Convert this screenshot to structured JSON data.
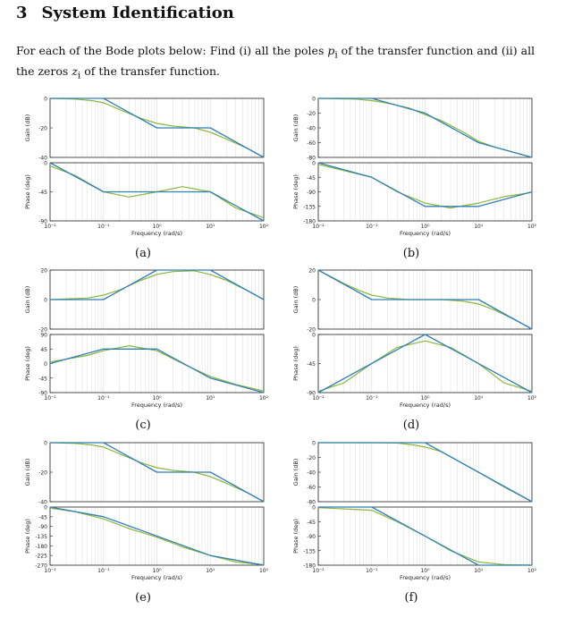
{
  "section": {
    "number": "3",
    "title": "System Identification",
    "intro_text_1": "For each of the Bode plots below: Find (i) all the poles ",
    "pole_symbol": "p",
    "pole_sub": "i",
    "intro_text_2": " of the transfer function and (ii) all the zeros ",
    "zero_symbol": "z",
    "zero_sub": "i",
    "intro_text_3": " of the transfer function."
  },
  "colors": {
    "asymptote": "#2f7fb8",
    "actual": "#8ab83a",
    "grid": "#dcdcdc",
    "axis": "#222222"
  },
  "chart_data": [
    {
      "type": "line",
      "id": "a",
      "caption": "(a)",
      "xlabel": "Frequency (rad/s)",
      "xlim": [
        0.01,
        100
      ],
      "x_ticks": [
        "10⁻²",
        "10⁻¹",
        "10⁰",
        "10¹",
        "10²"
      ],
      "gain": {
        "ylabel": "Gain (dB)",
        "ylim": [
          -40,
          0
        ],
        "ticks": [
          0,
          -20,
          -40
        ],
        "asymptote": {
          "x": [
            0.01,
            0.1,
            1,
            10,
            100
          ],
          "y": [
            0,
            0,
            -20,
            -20,
            -40
          ]
        },
        "actual": {
          "x": [
            0.01,
            0.03,
            0.06,
            0.1,
            0.2,
            0.5,
            1,
            2,
            5,
            10,
            20,
            50,
            100
          ],
          "y": [
            0,
            -0.5,
            -1.5,
            -3,
            -7.5,
            -13.5,
            -17,
            -18.8,
            -20,
            -23,
            -27.5,
            -34,
            -40
          ]
        }
      },
      "phase": {
        "ylabel": "Phase (deg)",
        "ylim": [
          -90,
          0
        ],
        "ticks": [
          0,
          -45,
          -90
        ],
        "asymptote": {
          "x": [
            0.01,
            0.1,
            10,
            100
          ],
          "y": [
            0,
            -45,
            -45,
            -90
          ]
        },
        "actual": {
          "x": [
            0.01,
            0.03,
            0.1,
            0.3,
            1,
            3,
            10,
            30,
            100
          ],
          "y": [
            -5,
            -20,
            -45,
            -53,
            -45,
            -37,
            -45,
            -70,
            -85
          ]
        }
      }
    },
    {
      "type": "line",
      "id": "b",
      "caption": "(b)",
      "xlabel": "Frequency (rad/s)",
      "xlim": [
        0.01,
        100
      ],
      "x_ticks": [
        "10⁻²",
        "10⁻¹",
        "10⁰",
        "10¹",
        "10²"
      ],
      "gain": {
        "ylabel": "Gain (dB)",
        "ylim": [
          -80,
          0
        ],
        "ticks": [
          0,
          -20,
          -40,
          -60,
          -80
        ],
        "asymptote": {
          "x": [
            0.01,
            0.1,
            1,
            10,
            100
          ],
          "y": [
            0,
            0,
            -20,
            -60,
            -80
          ]
        },
        "actual": {
          "x": [
            0.01,
            0.05,
            0.1,
            0.2,
            0.5,
            1,
            2,
            5,
            10,
            20,
            50,
            100
          ],
          "y": [
            0,
            -1,
            -3,
            -6.5,
            -13,
            -22,
            -30,
            -45,
            -58,
            -66,
            -74,
            -80
          ]
        }
      },
      "phase": {
        "ylabel": "Phase (deg)",
        "ylim": [
          -180,
          0
        ],
        "ticks": [
          0,
          -45,
          -90,
          -135,
          -180
        ],
        "asymptote": {
          "x": [
            0.01,
            0.1,
            1,
            10,
            100
          ],
          "y": [
            0,
            -45,
            -135,
            -135,
            -90
          ]
        },
        "actual": {
          "x": [
            0.01,
            0.1,
            0.3,
            1,
            3,
            10,
            30,
            100
          ],
          "y": [
            -5,
            -45,
            -90,
            -125,
            -140,
            -125,
            -105,
            -92
          ]
        }
      }
    },
    {
      "type": "line",
      "id": "c",
      "caption": "(c)",
      "xlabel": "Frequency (rad/s)",
      "xlim": [
        0.01,
        100
      ],
      "x_ticks": [
        "10⁻²",
        "10⁻¹",
        "10⁰",
        "10¹",
        "10²"
      ],
      "gain": {
        "ylabel": "Gain (dB)",
        "ylim": [
          -20,
          20
        ],
        "ticks": [
          20,
          0,
          -20
        ],
        "asymptote": {
          "x": [
            0.01,
            0.1,
            1,
            10,
            100
          ],
          "y": [
            0,
            0,
            20,
            20,
            0
          ]
        },
        "actual": {
          "x": [
            0.01,
            0.05,
            0.1,
            0.2,
            0.5,
            1,
            2,
            5,
            10,
            20,
            50,
            100
          ],
          "y": [
            0,
            1,
            3,
            6.5,
            13,
            17,
            19,
            19.5,
            17,
            13,
            6,
            0
          ]
        }
      },
      "phase": {
        "ylabel": "Phase (deg)",
        "ylim": [
          -90,
          90
        ],
        "ticks": [
          90,
          45,
          0,
          -45,
          -90
        ],
        "asymptote": {
          "x": [
            0.01,
            0.1,
            1,
            10,
            100
          ],
          "y": [
            0,
            45,
            45,
            -45,
            -90
          ]
        },
        "actual": {
          "x": [
            0.01,
            0.05,
            0.1,
            0.3,
            1,
            3,
            10,
            30,
            100
          ],
          "y": [
            5,
            25,
            40,
            55,
            40,
            0,
            -40,
            -65,
            -85
          ]
        }
      }
    },
    {
      "type": "line",
      "id": "d",
      "caption": "(d)",
      "xlabel": "Frequency (rad/s)",
      "xlim": [
        0.01,
        100
      ],
      "x_ticks": [
        "10⁻²",
        "10⁻¹",
        "10⁰",
        "10¹",
        "10²"
      ],
      "gain": {
        "ylabel": "Gain (dB)",
        "ylim": [
          -20,
          20
        ],
        "ticks": [
          20,
          0,
          -20
        ],
        "asymptote": {
          "x": [
            0.01,
            0.1,
            10,
            100
          ],
          "y": [
            20,
            0,
            0,
            -20
          ]
        },
        "actual": {
          "x": [
            0.01,
            0.03,
            0.06,
            0.1,
            0.2,
            0.5,
            1,
            2,
            5,
            10,
            20,
            50,
            100
          ],
          "y": [
            20,
            11,
            6,
            3,
            1,
            0,
            0,
            0,
            -1,
            -3,
            -7,
            -14,
            -20
          ]
        }
      },
      "phase": {
        "ylabel": "Phase (deg)",
        "ylim": [
          -90,
          0
        ],
        "ticks": [
          0,
          -45,
          -90
        ],
        "asymptote": {
          "x": [
            0.01,
            1,
            100
          ],
          "y": [
            -90,
            0,
            -90
          ]
        },
        "actual": {
          "x": [
            0.01,
            0.03,
            0.1,
            0.3,
            1,
            3,
            10,
            30,
            100
          ],
          "y": [
            -88,
            -75,
            -45,
            -20,
            -10,
            -20,
            -45,
            -75,
            -88
          ]
        }
      }
    },
    {
      "type": "line",
      "id": "e",
      "caption": "(e)",
      "xlabel": "Frequency (rad/s)",
      "xlim": [
        0.01,
        100
      ],
      "x_ticks": [
        "10⁻²",
        "10⁻¹",
        "10⁰",
        "10¹",
        "10²"
      ],
      "gain": {
        "ylabel": "Gain (dB)",
        "ylim": [
          -40,
          0
        ],
        "ticks": [
          0,
          -20,
          -40
        ],
        "asymptote": {
          "x": [
            0.01,
            0.1,
            1,
            10,
            100
          ],
          "y": [
            0,
            0,
            -20,
            -20,
            -40
          ]
        },
        "actual": {
          "x": [
            0.01,
            0.03,
            0.06,
            0.1,
            0.2,
            0.5,
            1,
            2,
            5,
            10,
            20,
            50,
            100
          ],
          "y": [
            0,
            -0.5,
            -1.5,
            -3,
            -7.5,
            -13.5,
            -17,
            -18.8,
            -20,
            -23,
            -27.5,
            -34,
            -40
          ]
        }
      },
      "phase": {
        "ylabel": "Phase (deg)",
        "ylim": [
          -270,
          0
        ],
        "ticks": [
          0,
          -45,
          -90,
          -135,
          -180,
          -225,
          -270
        ],
        "asymptote": {
          "x": [
            0.01,
            0.1,
            10,
            100
          ],
          "y": [
            0,
            -45,
            -225,
            -270
          ]
        },
        "actual": {
          "x": [
            0.01,
            0.03,
            0.1,
            0.3,
            1,
            3,
            10,
            30,
            100
          ],
          "y": [
            -5,
            -22,
            -55,
            -100,
            -140,
            -185,
            -225,
            -255,
            -268
          ]
        }
      }
    },
    {
      "type": "line",
      "id": "f",
      "caption": "(f)",
      "xlabel": "Frequency (rad/s)",
      "xlim": [
        0.01,
        100
      ],
      "x_ticks": [
        "10⁻²",
        "10⁻¹",
        "10⁰",
        "10¹",
        "10²"
      ],
      "gain": {
        "ylabel": "Gain (dB)",
        "ylim": [
          -80,
          0
        ],
        "ticks": [
          0,
          -20,
          -40,
          -60,
          -80
        ],
        "asymptote": {
          "x": [
            0.01,
            1,
            100
          ],
          "y": [
            0,
            0,
            -80
          ]
        },
        "actual": {
          "x": [
            0.01,
            0.1,
            0.3,
            0.6,
            1,
            2,
            5,
            10,
            30,
            100
          ],
          "y": [
            0,
            0,
            -0.5,
            -3,
            -6,
            -12,
            -28,
            -40,
            -60,
            -80
          ]
        }
      },
      "phase": {
        "ylabel": "Phase (deg)",
        "ylim": [
          -180,
          0
        ],
        "ticks": [
          0,
          -45,
          -90,
          -135,
          -180
        ],
        "asymptote": {
          "x": [
            0.01,
            0.1,
            10,
            100
          ],
          "y": [
            0,
            0,
            -180,
            -180
          ]
        },
        "actual": {
          "x": [
            0.01,
            0.1,
            0.3,
            1,
            3,
            10,
            30,
            100
          ],
          "y": [
            -2,
            -10,
            -45,
            -90,
            -135,
            -170,
            -178,
            -180
          ]
        }
      }
    }
  ]
}
